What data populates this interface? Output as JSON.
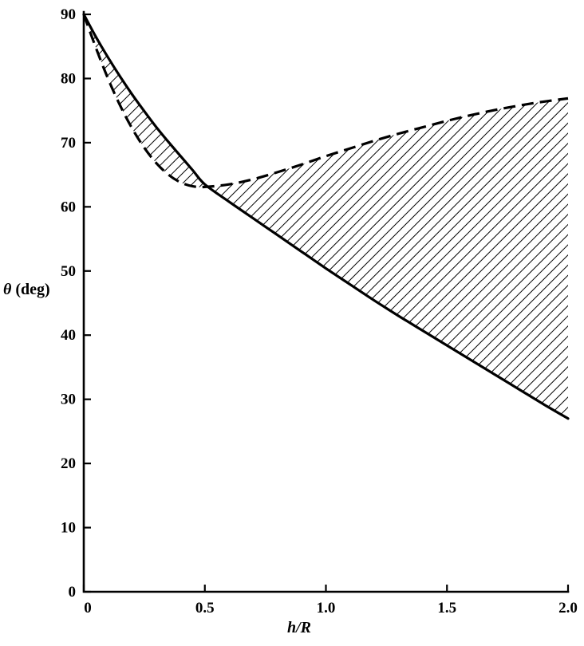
{
  "figure": {
    "ylabel_symbol": "θ",
    "ylabel_unit": " (deg)",
    "xlabel": "h/R"
  },
  "chart_data": {
    "type": "line",
    "title": "",
    "xlabel": "h/R",
    "ylabel": "θ (deg)",
    "xlim": [
      0,
      2.0
    ],
    "ylim": [
      0,
      90
    ],
    "grid": false,
    "legend": "none",
    "x_tick_values": [
      0,
      0.5,
      1.0,
      1.5,
      2.0
    ],
    "x_tick_labels": [
      "0",
      "0.5",
      "1.0",
      "1.5",
      "2.0"
    ],
    "y_tick_values": [
      0,
      10,
      20,
      30,
      40,
      50,
      60,
      70,
      80,
      90
    ],
    "y_tick_labels": [
      "0",
      "10",
      "20",
      "30",
      "40",
      "50",
      "60",
      "70",
      "80",
      "90"
    ],
    "series": [
      {
        "name": "solid-boundary",
        "style": "solid",
        "x": [
          0,
          0.05,
          0.1,
          0.15,
          0.2,
          0.25,
          0.3,
          0.35,
          0.4,
          0.45,
          0.5,
          0.6,
          0.7,
          0.8,
          0.9,
          1.0,
          1.1,
          1.2,
          1.3,
          1.4,
          1.5,
          1.6,
          1.7,
          1.8,
          1.9,
          2.0
        ],
        "y": [
          90,
          86.5,
          83.3,
          80.3,
          77.5,
          74.9,
          72.4,
          70.1,
          67.9,
          65.7,
          63.5,
          60.8,
          58.2,
          55.6,
          53.0,
          50.4,
          47.9,
          45.4,
          43.0,
          40.7,
          38.4,
          36.1,
          33.8,
          31.5,
          29.2,
          27.0
        ]
      },
      {
        "name": "dashed-boundary",
        "style": "dashed",
        "x": [
          0,
          0.05,
          0.1,
          0.15,
          0.2,
          0.25,
          0.3,
          0.35,
          0.4,
          0.45,
          0.5,
          0.6,
          0.7,
          0.8,
          0.9,
          1.0,
          1.1,
          1.2,
          1.3,
          1.4,
          1.5,
          1.6,
          1.7,
          1.8,
          1.9,
          2.0
        ],
        "y": [
          90,
          84.8,
          80.0,
          75.8,
          72.2,
          69.2,
          66.8,
          65.0,
          63.8,
          63.2,
          63.1,
          63.5,
          64.3,
          65.4,
          66.6,
          67.9,
          69.1,
          70.3,
          71.4,
          72.4,
          73.4,
          74.3,
          75.1,
          75.8,
          76.4,
          76.9
        ]
      }
    ],
    "shaded_region": {
      "description": "diagonal-hatched region enclosed between the solid curve and the dashed curve; narrow lens from h/R=0 to ~0.5 and widening band from ~0.5 to 2.0",
      "hatch": "diagonal /",
      "color": "#000000"
    }
  }
}
